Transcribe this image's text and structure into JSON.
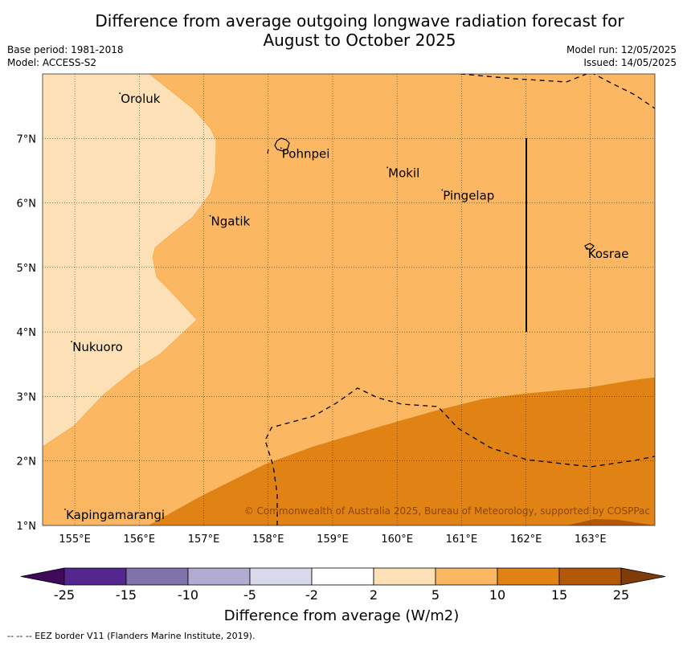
{
  "title_line1": "Difference from average outgoing longwave radiation forecast for",
  "title_line2": "August to October 2025",
  "base_period": "Base period: 1981-2018",
  "model": "Model: ACCESS-S2",
  "model_run": "Model run: 12/05/2025",
  "issued": "Issued: 14/05/2025",
  "copyright": "© Commonwealth of Australia 2025, Bureau of Meteorology, supported by COSPPac",
  "footer": "--  --  -- EEZ border V11 (Flanders Marine Institute, 2019).",
  "map": {
    "lon_range": [
      154.5,
      164.0
    ],
    "lat_range": [
      1.0,
      8.0
    ],
    "x_ticks": [
      {
        "value": 155,
        "label": "155°E"
      },
      {
        "value": 156,
        "label": "156°E"
      },
      {
        "value": 157,
        "label": "157°E"
      },
      {
        "value": 158,
        "label": "158°E"
      },
      {
        "value": 159,
        "label": "159°E"
      },
      {
        "value": 160,
        "label": "160°E"
      },
      {
        "value": 161,
        "label": "161°E"
      },
      {
        "value": 162,
        "label": "162°E"
      },
      {
        "value": 163,
        "label": "163°E"
      }
    ],
    "y_ticks": [
      {
        "value": 1,
        "label": "1°N"
      },
      {
        "value": 2,
        "label": "2°N"
      },
      {
        "value": 3,
        "label": "3°N"
      },
      {
        "value": 4,
        "label": "4°N"
      },
      {
        "value": 5,
        "label": "5°N"
      },
      {
        "value": 6,
        "label": "6°N"
      },
      {
        "value": 7,
        "label": "7°N"
      }
    ],
    "places": [
      {
        "name": "Oroluk",
        "lon": 155.7,
        "lat": 7.7
      },
      {
        "name": "Pohnpei",
        "lon": 158.2,
        "lat": 6.85
      },
      {
        "name": "Mokil",
        "lon": 159.85,
        "lat": 6.55
      },
      {
        "name": "Pingelap",
        "lon": 160.7,
        "lat": 6.2
      },
      {
        "name": "Ngatik",
        "lon": 157.1,
        "lat": 5.8
      },
      {
        "name": "Kosrae",
        "lon": 162.95,
        "lat": 5.3
      },
      {
        "name": "Nukuoro",
        "lon": 154.95,
        "lat": 3.85
      },
      {
        "name": "Kapingamarangi",
        "lon": 154.85,
        "lat": 1.25
      }
    ]
  },
  "colorbar": {
    "label": "Difference from average (W/m2)",
    "tick_labels": [
      "-25",
      "-15",
      "-10",
      "-5",
      "-2",
      "2",
      "5",
      "10",
      "15",
      "25"
    ],
    "colors": [
      "#3f0a5a",
      "#54278f",
      "#8073ac",
      "#b2abd2",
      "#d8daeb",
      "#ffffff",
      "#fee0b6",
      "#fbb761",
      "#e08214",
      "#b35806",
      "#7f3b08"
    ]
  },
  "fill_colors": {
    "band_2_5": "#fde0b6",
    "band_5_10": "#fbb761",
    "band_10_15": "#e08214",
    "band_15_25": "#b35806"
  }
}
